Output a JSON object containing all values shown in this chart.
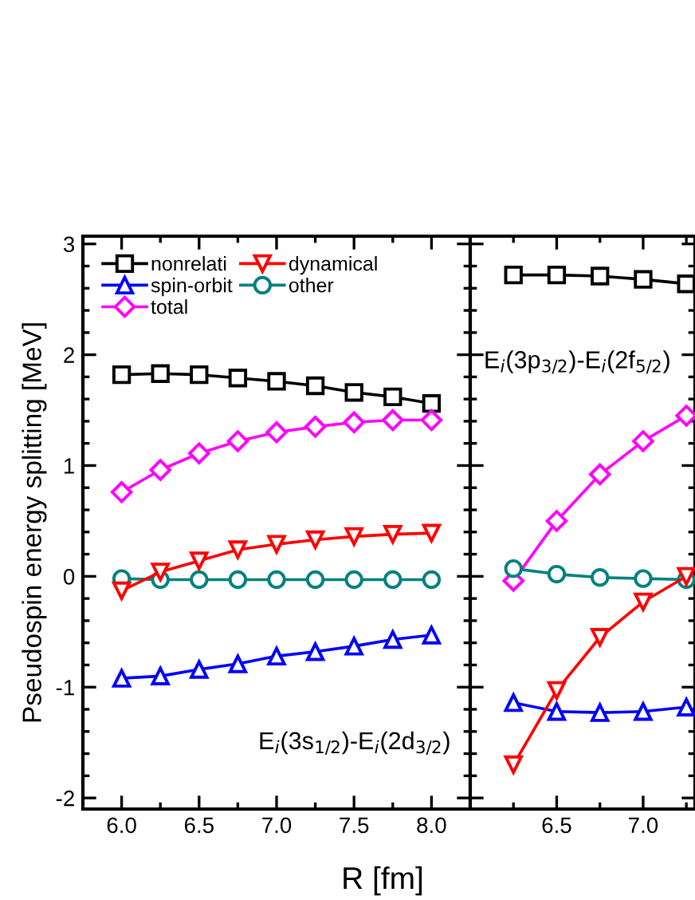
{
  "chart_data": [
    {
      "type": "line",
      "xlabel": "R [fm]",
      "ylabel": "Pseudospin energy splitting [MeV]",
      "annotations": [
        "E$_{i}$(3s$_{1/2}$)-E$_{i}$(2d$_{3/2}$)"
      ],
      "x": [
        6.0,
        6.25,
        6.5,
        6.75,
        7.0,
        7.25,
        7.5,
        7.75,
        8.0
      ],
      "xlim": [
        5.75,
        8.25
      ],
      "xticks": [
        {
          "value": 6.0,
          "label": "6.0"
        },
        {
          "value": 6.5,
          "label": "6.5"
        },
        {
          "value": 7.0,
          "label": "7.0"
        },
        {
          "value": 7.5,
          "label": "7.5"
        },
        {
          "value": 8.0,
          "label": "8.0"
        }
      ],
      "ylim": [
        -2.1,
        3.07
      ],
      "yticks": [
        -2,
        -1,
        0,
        1,
        2,
        3
      ],
      "grid": false,
      "legend": "top left",
      "line_style": "solid",
      "series": [
        {
          "name": "nonrelati",
          "color": "#000000",
          "marker": "square",
          "values": [
            1.82,
            1.83,
            1.82,
            1.79,
            1.76,
            1.72,
            1.66,
            1.62,
            1.56
          ]
        },
        {
          "name": "spin-orbit",
          "color": "#0000ff",
          "marker": "triangle",
          "values": [
            -0.92,
            -0.9,
            -0.84,
            -0.79,
            -0.72,
            -0.68,
            -0.63,
            -0.57,
            -0.53
          ]
        },
        {
          "name": "total",
          "color": "#ff00ff",
          "marker": "diamond",
          "values": [
            0.76,
            0.96,
            1.11,
            1.22,
            1.3,
            1.35,
            1.39,
            1.41,
            1.41
          ]
        },
        {
          "name": "dynamical",
          "color": "#ff0000",
          "marker": "triangle-down",
          "values": [
            -0.13,
            0.04,
            0.14,
            0.24,
            0.29,
            0.33,
            0.36,
            0.38,
            0.39
          ]
        },
        {
          "name": "other",
          "color": "#008080",
          "marker": "circle",
          "values": [
            -0.02,
            -0.03,
            -0.03,
            -0.03,
            -0.03,
            -0.03,
            -0.03,
            -0.03,
            -0.03
          ]
        }
      ]
    },
    {
      "type": "line",
      "annotations": [
        "E$_{i}$(3p$_{3/2}$)-E$_{i}$(2f$_{5/2}$)"
      ],
      "x": [
        6.25,
        6.5,
        6.75,
        7.0,
        7.25
      ],
      "xlim": [
        6.0,
        7.3
      ],
      "xticks": [
        {
          "value": 6.5,
          "label": "6.5"
        },
        {
          "value": 7.0,
          "label": "7.0"
        }
      ],
      "ylim": [
        -2.1,
        3.07
      ],
      "yticks": [
        -2,
        -1,
        0,
        1,
        2,
        3
      ],
      "tick_labels": "x",
      "grid": false,
      "line_style": "solid",
      "series": [
        {
          "color": "#000000",
          "marker": "square",
          "values": [
            2.72,
            2.72,
            2.71,
            2.68,
            2.64
          ]
        },
        {
          "color": "#0000ff",
          "marker": "triangle",
          "values": [
            -1.14,
            -1.22,
            -1.23,
            -1.22,
            -1.18
          ]
        },
        {
          "color": "#ff00ff",
          "marker": "diamond",
          "values": [
            -0.04,
            0.5,
            0.92,
            1.22,
            1.45
          ]
        },
        {
          "color": "#ff0000",
          "marker": "triangle-down",
          "values": [
            -1.7,
            -1.03,
            -0.55,
            -0.23,
            0.0
          ]
        },
        {
          "color": "#008080",
          "marker": "circle",
          "values": [
            0.07,
            0.02,
            -0.01,
            -0.02,
            -0.03
          ]
        }
      ]
    }
  ]
}
